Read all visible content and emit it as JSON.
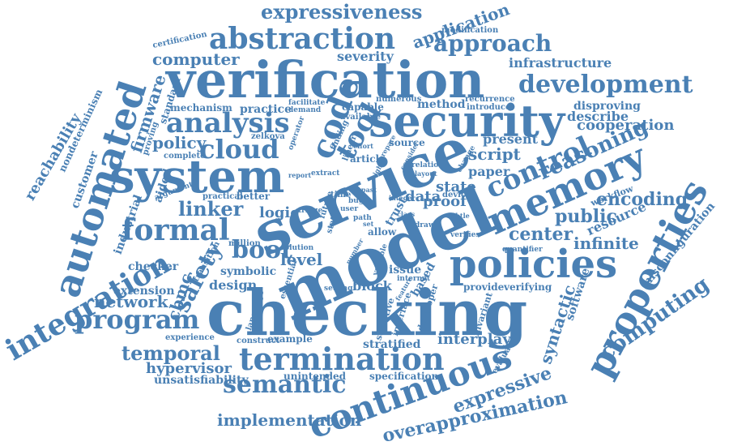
{
  "colors": {
    "word": "#4a80b4",
    "background": "#ffffff"
  },
  "words": [
    {
      "text": "checking"
    },
    {
      "text": "model"
    },
    {
      "text": "service"
    },
    {
      "text": "verification"
    },
    {
      "text": "security"
    },
    {
      "text": "system"
    },
    {
      "text": "automated"
    },
    {
      "text": "policies"
    },
    {
      "text": "memory"
    },
    {
      "text": "properties"
    },
    {
      "text": "termination"
    },
    {
      "text": "continuous"
    },
    {
      "text": "integration"
    },
    {
      "text": "abstraction"
    },
    {
      "text": "code"
    },
    {
      "text": "analysis"
    },
    {
      "text": "control"
    },
    {
      "text": "formal"
    },
    {
      "text": "development"
    },
    {
      "text": "cloud"
    },
    {
      "text": "tool"
    },
    {
      "text": "program"
    },
    {
      "text": "boot"
    },
    {
      "text": "approach"
    },
    {
      "text": "semantic"
    },
    {
      "text": "expressiveness"
    },
    {
      "text": "reasoning"
    },
    {
      "text": "computing"
    },
    {
      "text": "safety"
    },
    {
      "text": "overapproximation"
    },
    {
      "text": "application"
    },
    {
      "text": "computer"
    },
    {
      "text": "temporal"
    },
    {
      "text": "public"
    },
    {
      "text": "encoding"
    },
    {
      "text": "linker"
    },
    {
      "text": "policy"
    },
    {
      "text": "firmware"
    },
    {
      "text": "reachability"
    },
    {
      "text": "expressive"
    },
    {
      "text": "implementation"
    },
    {
      "text": "cooperation"
    },
    {
      "text": "infrastructure"
    },
    {
      "text": "network"
    },
    {
      "text": "script"
    },
    {
      "text": "syntactic"
    },
    {
      "text": "center"
    },
    {
      "text": "infinite"
    },
    {
      "text": "hypervisor"
    },
    {
      "text": "interplay"
    },
    {
      "text": "level"
    },
    {
      "text": "state"
    },
    {
      "text": "data"
    },
    {
      "text": "design"
    },
    {
      "text": "cbmc"
    },
    {
      "text": "severity"
    },
    {
      "text": "describe"
    },
    {
      "text": "present"
    },
    {
      "text": "paper"
    },
    {
      "text": "proof"
    },
    {
      "text": "logic"
    },
    {
      "text": "block"
    },
    {
      "text": "software"
    },
    {
      "text": "resource"
    },
    {
      "text": "misconfiguration"
    },
    {
      "text": "disproving"
    },
    {
      "text": "method"
    },
    {
      "text": "practice"
    },
    {
      "text": "extension"
    },
    {
      "text": "unsatisfiability"
    },
    {
      "text": "stratified"
    },
    {
      "text": "nondeterminism"
    },
    {
      "text": "customer"
    },
    {
      "text": "industrial"
    },
    {
      "text": "checker"
    },
    {
      "text": "symbolic"
    },
    {
      "text": "aided"
    },
    {
      "text": "standard"
    },
    {
      "text": "mechanism"
    },
    {
      "text": "complete"
    },
    {
      "text": "proving"
    },
    {
      "text": "certification"
    },
    {
      "text": "modification"
    },
    {
      "text": "capable"
    },
    {
      "text": "numerous"
    },
    {
      "text": "available"
    },
    {
      "text": "facilitate"
    },
    {
      "text": "demand"
    },
    {
      "text": "recurrence"
    },
    {
      "text": "introduce"
    },
    {
      "text": "source"
    },
    {
      "text": "article"
    },
    {
      "text": "zelkova"
    },
    {
      "text": "finding"
    },
    {
      "text": "linear"
    },
    {
      "text": "operator"
    },
    {
      "text": "argument"
    },
    {
      "text": "practical"
    },
    {
      "text": "better"
    },
    {
      "text": "time"
    },
    {
      "text": "future"
    },
    {
      "text": "triage"
    },
    {
      "text": "static"
    },
    {
      "text": "user"
    },
    {
      "text": "bug"
    },
    {
      "text": "path"
    },
    {
      "text": "allow"
    },
    {
      "text": "trust"
    },
    {
      "text": "million"
    },
    {
      "text": "solution"
    },
    {
      "text": "based"
    },
    {
      "text": "issue"
    },
    {
      "text": "internet"
    },
    {
      "text": "setting"
    },
    {
      "text": "provide"
    },
    {
      "text": "verifying"
    },
    {
      "text": "quantifier"
    },
    {
      "text": "verifies"
    },
    {
      "text": "workflow"
    },
    {
      "text": "device"
    },
    {
      "text": "relation"
    },
    {
      "text": "layout"
    },
    {
      "text": "change"
    },
    {
      "text": "experience"
    },
    {
      "text": "construct"
    },
    {
      "text": "example"
    },
    {
      "text": "unintended"
    },
    {
      "text": "specification"
    },
    {
      "text": "evaluation"
    },
    {
      "text": "developer"
    },
    {
      "text": "invariant"
    },
    {
      "text": "sensitive"
    },
    {
      "text": "interface"
    },
    {
      "text": "essential"
    },
    {
      "text": "language"
    },
    {
      "text": "transition"
    },
    {
      "text": "extract"
    },
    {
      "text": "report"
    },
    {
      "text": "effort"
    },
    {
      "text": "higher"
    },
    {
      "text": "prepare"
    },
    {
      "text": "consider"
    },
    {
      "text": "subtle"
    },
    {
      "text": "drawn"
    },
    {
      "text": "variable"
    },
    {
      "text": "number"
    },
    {
      "text": "feature"
    },
    {
      "text": "integer"
    },
    {
      "text": "set"
    },
    {
      "text": "past"
    },
    {
      "text": "class"
    }
  ]
}
